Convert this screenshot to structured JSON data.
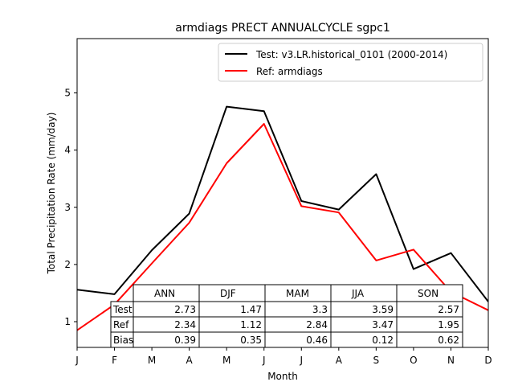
{
  "chart_data": {
    "type": "line",
    "title": "armdiags PRECT ANNUALCYCLE sgpc1",
    "xlabel": "Month",
    "ylabel": "Total Precipitation Rate (mm/day)",
    "categories": [
      "J",
      "F",
      "M",
      "A",
      "M",
      "J",
      "J",
      "A",
      "S",
      "O",
      "N",
      "D"
    ],
    "ylim": [
      0.55,
      5.95
    ],
    "yticks": [
      1,
      2,
      3,
      4,
      5
    ],
    "legend_position": "top-right",
    "grid": false,
    "series": [
      {
        "name": "Test: v3.LR.historical_0101 (2000-2014)",
        "color": "#000000",
        "values": [
          1.56,
          1.48,
          2.25,
          2.89,
          4.76,
          4.68,
          3.11,
          2.96,
          3.58,
          1.92,
          2.2,
          1.35
        ]
      },
      {
        "name": "Ref: armdiags",
        "color": "#ff0000",
        "values": [
          0.85,
          1.3,
          2.02,
          2.73,
          3.77,
          4.46,
          3.02,
          2.91,
          2.07,
          2.26,
          1.52,
          1.2
        ]
      }
    ],
    "stats_table": {
      "columns": [
        "ANN",
        "DJF",
        "MAM",
        "JJA",
        "SON"
      ],
      "rows": [
        {
          "label": "Test",
          "values": [
            "2.73",
            "1.47",
            "3.3",
            "3.59",
            "2.57"
          ]
        },
        {
          "label": "Ref",
          "values": [
            "2.34",
            "1.12",
            "2.84",
            "3.47",
            "1.95"
          ]
        },
        {
          "label": "Bias",
          "values": [
            "0.39",
            "0.35",
            "0.46",
            "0.12",
            "0.62"
          ]
        }
      ]
    }
  }
}
